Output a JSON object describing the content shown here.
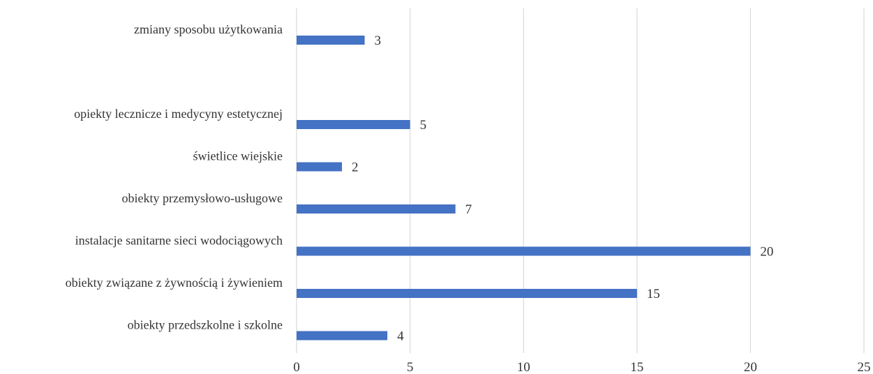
{
  "chart_data": {
    "type": "bar",
    "orientation": "horizontal",
    "categories": [
      "zmiany sposobu użytkowania",
      "",
      "opiekty lecznicze i medycyny estetycznej",
      "świetlice wiejskie",
      "obiekty przemysłowo-usługowe ",
      "instalacje sanitarne sieci wodociągowych ",
      "obiekty związane z żywnością i żywieniem ",
      "obiekty przedszkolne i szkolne"
    ],
    "values": [
      3,
      null,
      5,
      2,
      7,
      20,
      15,
      4
    ],
    "data_labels": [
      "3",
      "",
      "5",
      "2",
      "7",
      "20",
      "15",
      "4"
    ],
    "xlim": [
      0,
      25
    ],
    "xticks": [
      0,
      5,
      10,
      15,
      20,
      25
    ],
    "xtick_labels": [
      "0",
      "5",
      "10",
      "15",
      "20",
      "25"
    ],
    "grid": "vertical",
    "title": "",
    "xlabel": "",
    "ylabel": "",
    "bar_color": "#4472c4"
  }
}
